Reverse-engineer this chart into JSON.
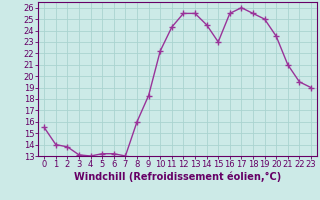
{
  "x": [
    0,
    1,
    2,
    3,
    4,
    5,
    6,
    7,
    8,
    9,
    10,
    11,
    12,
    13,
    14,
    15,
    16,
    17,
    18,
    19,
    20,
    21,
    22,
    23
  ],
  "y": [
    15.5,
    14.0,
    13.8,
    13.1,
    13.0,
    13.2,
    13.2,
    13.0,
    16.0,
    18.3,
    22.2,
    24.3,
    25.5,
    25.5,
    24.5,
    23.0,
    25.5,
    26.0,
    25.5,
    25.0,
    23.5,
    21.0,
    19.5,
    19.0
  ],
  "line_color": "#993399",
  "marker": "+",
  "marker_size": 4,
  "marker_lw": 1.0,
  "bg_color": "#cceae7",
  "grid_color": "#aad4d0",
  "xlabel": "Windchill (Refroidissement éolien,°C)",
  "xlim": [
    -0.5,
    23.5
  ],
  "ylim": [
    13,
    26.5
  ],
  "xtick_labels": [
    "0",
    "1",
    "2",
    "3",
    "4",
    "5",
    "6",
    "7",
    "8",
    "9",
    "10",
    "11",
    "12",
    "13",
    "14",
    "15",
    "16",
    "17",
    "18",
    "19",
    "20",
    "21",
    "22",
    "23"
  ],
  "ytick_values": [
    13,
    14,
    15,
    16,
    17,
    18,
    19,
    20,
    21,
    22,
    23,
    24,
    25,
    26
  ],
  "tick_fontsize": 6,
  "xlabel_fontsize": 7,
  "line_width": 1.0,
  "axes_color": "#660066",
  "spine_color": "#660066"
}
